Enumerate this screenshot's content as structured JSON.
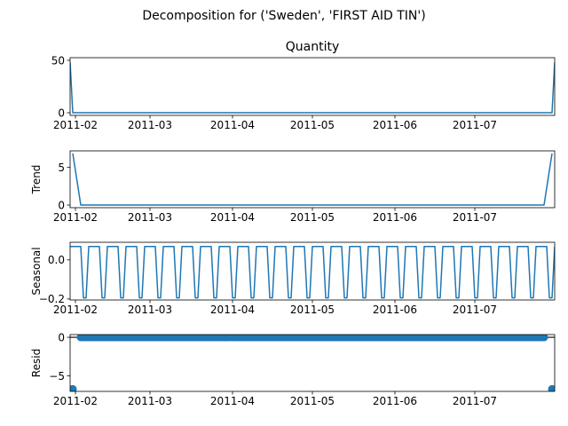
{
  "figure": {
    "suptitle": "Decomposition for ('Sweden', 'FIRST AID TIN')"
  },
  "colors": {
    "series": "#1f77b4",
    "axes": "#000000",
    "zero_line": "#000000"
  },
  "chart_data": [
    {
      "type": "line",
      "title": "Quantity",
      "ylabel": "",
      "xlim": [
        "2011-01-30",
        "2011-07-31"
      ],
      "ylim": [
        -2.5,
        52.5
      ],
      "yticks": [
        0,
        50
      ],
      "xticks": [
        "2011-02-01",
        "2011-03-01",
        "2011-04-01",
        "2011-05-01",
        "2011-06-01",
        "2011-07-01"
      ],
      "xtick_labels": [
        "2011-02",
        "2011-03",
        "2011-04",
        "2011-05",
        "2011-06",
        "2011-07"
      ],
      "series": [
        {
          "points": [
            {
              "x": "2011-01-30",
              "y": 48
            },
            {
              "x": "2011-01-31",
              "y": 0
            },
            {
              "x": "2011-07-30",
              "y": 0
            },
            {
              "x": "2011-07-31",
              "y": 48
            }
          ]
        }
      ]
    },
    {
      "type": "line",
      "title": "",
      "ylabel": "Trend",
      "xlim": [
        "2011-01-30",
        "2011-07-31"
      ],
      "ylim": [
        -0.35,
        7.2
      ],
      "yticks": [
        0,
        5
      ],
      "xticks": [
        "2011-02-01",
        "2011-03-01",
        "2011-04-01",
        "2011-05-01",
        "2011-06-01",
        "2011-07-01"
      ],
      "xtick_labels": [
        "2011-02",
        "2011-03",
        "2011-04",
        "2011-05",
        "2011-06",
        "2011-07"
      ],
      "series": [
        {
          "points": [
            {
              "x": "2011-01-31",
              "y": 6.86
            },
            {
              "x": "2011-02-03",
              "y": 0
            },
            {
              "x": "2011-07-27",
              "y": 0
            },
            {
              "x": "2011-07-30",
              "y": 6.86
            }
          ]
        }
      ]
    },
    {
      "type": "line",
      "title": "",
      "ylabel": "Seasonal",
      "xlim": [
        "2011-01-30",
        "2011-07-31"
      ],
      "ylim": [
        -0.205,
        0.09
      ],
      "yticks": [
        0.0,
        -0.2
      ],
      "ytick_labels": [
        "0.0",
        "−0.2"
      ],
      "xticks": [
        "2011-02-01",
        "2011-03-01",
        "2011-04-01",
        "2011-05-01",
        "2011-06-01",
        "2011-07-01"
      ],
      "xtick_labels": [
        "2011-02",
        "2011-03",
        "2011-04",
        "2011-05",
        "2011-06",
        "2011-07"
      ],
      "weekly_pattern": [
        0.0686,
        0.0686,
        0.0686,
        0.0686,
        0.0686,
        -0.1943,
        -0.1943
      ],
      "start": "2011-01-30",
      "end": "2011-07-31"
    },
    {
      "type": "scatter",
      "title": "",
      "ylabel": "Resid",
      "xlim": [
        "2011-01-30",
        "2011-07-31"
      ],
      "ylim": [
        -7.0,
        0.35
      ],
      "yticks": [
        0,
        -5
      ],
      "ytick_labels": [
        "0",
        "−5"
      ],
      "xticks": [
        "2011-02-01",
        "2011-03-01",
        "2011-04-01",
        "2011-05-01",
        "2011-06-01",
        "2011-07-01"
      ],
      "xtick_labels": [
        "2011-02",
        "2011-03",
        "2011-04",
        "2011-05",
        "2011-06",
        "2011-07"
      ],
      "zero_line": 0,
      "outliers": [
        {
          "x": "2011-01-31",
          "y": -6.7
        },
        {
          "x": "2011-07-30",
          "y": -6.7
        }
      ],
      "baseline_range": [
        "2011-02-03",
        "2011-07-27"
      ],
      "baseline_value": 0
    }
  ]
}
